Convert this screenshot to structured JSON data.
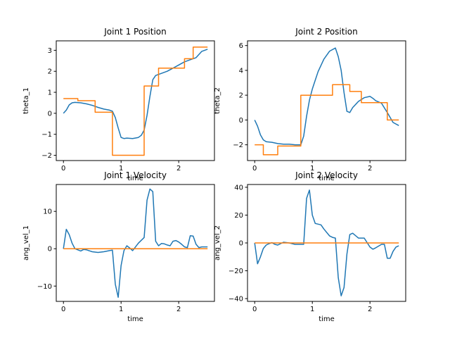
{
  "figure": {
    "background": "#ffffff"
  },
  "chart_data": [
    {
      "type": "line",
      "title": "Joint 1 Position",
      "xlabel": "time",
      "ylabel": "theta_1",
      "xlim": [
        -0.125,
        2.62
      ],
      "ylim": [
        -2.25,
        3.45
      ],
      "xticks": [
        0,
        1,
        2
      ],
      "xtick_labels": [
        "0",
        "1",
        "2"
      ],
      "yticks": [
        -2,
        -1,
        0,
        1,
        2,
        3
      ],
      "ytick_labels": [
        "−2",
        "−1",
        "0",
        "1",
        "2",
        "3"
      ],
      "series": [
        {
          "color": "#1f77b4",
          "x": [
            0,
            0.05,
            0.1,
            0.15,
            0.2,
            0.3,
            0.4,
            0.5,
            0.6,
            0.7,
            0.8,
            0.85,
            0.9,
            0.95,
            1.0,
            1.05,
            1.1,
            1.2,
            1.3,
            1.35,
            1.4,
            1.45,
            1.5,
            1.55,
            1.6,
            1.7,
            1.8,
            1.9,
            2.0,
            2.1,
            2.2,
            2.3,
            2.4,
            2.5
          ],
          "y": [
            0.0,
            0.15,
            0.4,
            0.5,
            0.52,
            0.5,
            0.45,
            0.38,
            0.28,
            0.2,
            0.15,
            0.1,
            -0.2,
            -0.7,
            -1.15,
            -1.2,
            -1.18,
            -1.2,
            -1.15,
            -1.05,
            -0.8,
            -0.1,
            0.8,
            1.6,
            1.8,
            1.9,
            2.0,
            2.15,
            2.3,
            2.45,
            2.55,
            2.65,
            2.95,
            3.05
          ]
        },
        {
          "color": "#ff7f0e",
          "x": [
            0,
            0.25,
            0.25,
            0.55,
            0.55,
            0.75,
            0.75,
            0.85,
            0.85,
            1.4,
            1.4,
            1.65,
            1.65,
            1.85,
            1.85,
            2.1,
            2.1,
            2.25,
            2.25,
            2.5
          ],
          "y": [
            0.7,
            0.7,
            0.6,
            0.6,
            0.05,
            0.05,
            0.05,
            0.05,
            -2.0,
            -2.0,
            1.3,
            1.3,
            2.15,
            2.15,
            2.15,
            2.15,
            2.6,
            2.6,
            3.15,
            3.15
          ]
        }
      ]
    },
    {
      "type": "line",
      "title": "Joint 2 Position",
      "xlabel": "time",
      "ylabel": "theta_2",
      "xlim": [
        -0.125,
        2.62
      ],
      "ylim": [
        -3.27,
        6.38
      ],
      "xticks": [
        0,
        1,
        2
      ],
      "xtick_labels": [
        "0",
        "1",
        "2"
      ],
      "yticks": [
        -2,
        0,
        2,
        4,
        6
      ],
      "ytick_labels": [
        "−2",
        "0",
        "2",
        "4",
        "6"
      ],
      "series": [
        {
          "color": "#1f77b4",
          "x": [
            0,
            0.05,
            0.1,
            0.15,
            0.2,
            0.3,
            0.4,
            0.5,
            0.6,
            0.7,
            0.8,
            0.85,
            0.9,
            0.95,
            1.0,
            1.05,
            1.1,
            1.2,
            1.3,
            1.4,
            1.45,
            1.5,
            1.55,
            1.6,
            1.65,
            1.7,
            1.8,
            1.9,
            2.0,
            2.05,
            2.1,
            2.2,
            2.3,
            2.4,
            2.5
          ],
          "y": [
            0.0,
            -0.5,
            -1.2,
            -1.6,
            -1.75,
            -1.8,
            -1.9,
            -1.95,
            -1.95,
            -2.0,
            -2.0,
            -1.3,
            0.3,
            1.6,
            2.5,
            3.2,
            3.9,
            4.9,
            5.55,
            5.8,
            5.1,
            4.0,
            2.2,
            0.7,
            0.6,
            1.0,
            1.5,
            1.8,
            1.9,
            1.75,
            1.55,
            1.35,
            0.6,
            -0.2,
            -0.45
          ]
        },
        {
          "color": "#ff7f0e",
          "x": [
            0,
            0.15,
            0.15,
            0.4,
            0.4,
            0.6,
            0.6,
            0.8,
            0.8,
            1.35,
            1.35,
            1.65,
            1.65,
            1.85,
            1.85,
            2.2,
            2.2,
            2.3,
            2.3,
            2.5
          ],
          "y": [
            -2.0,
            -2.0,
            -2.8,
            -2.8,
            -2.1,
            -2.1,
            -2.1,
            -2.1,
            2.0,
            2.0,
            2.85,
            2.85,
            2.3,
            2.3,
            1.4,
            1.4,
            1.4,
            1.4,
            0.0,
            0.0
          ]
        }
      ]
    },
    {
      "type": "line",
      "title": "Joint 1 Velocity",
      "xlabel": "time",
      "ylabel": "ang_vel_1",
      "xlim": [
        -0.125,
        2.62
      ],
      "ylim": [
        -14.1,
        17.2
      ],
      "xticks": [
        0,
        1,
        2
      ],
      "xtick_labels": [
        "0",
        "1",
        "2"
      ],
      "yticks": [
        -10,
        0,
        10
      ],
      "ytick_labels": [
        "−10",
        "0",
        "10"
      ],
      "series": [
        {
          "color": "#1f77b4",
          "x": [
            0,
            0.05,
            0.1,
            0.15,
            0.2,
            0.25,
            0.3,
            0.35,
            0.4,
            0.5,
            0.6,
            0.7,
            0.8,
            0.85,
            0.9,
            0.95,
            1.0,
            1.05,
            1.1,
            1.15,
            1.2,
            1.3,
            1.4,
            1.45,
            1.5,
            1.55,
            1.6,
            1.65,
            1.7,
            1.75,
            1.8,
            1.85,
            1.9,
            1.95,
            2.0,
            2.05,
            2.1,
            2.15,
            2.2,
            2.25,
            2.3,
            2.35,
            2.4,
            2.45,
            2.5
          ],
          "y": [
            0.0,
            5.2,
            3.8,
            1.5,
            0.0,
            -0.3,
            -0.6,
            -0.2,
            -0.3,
            -0.8,
            -1.0,
            -0.8,
            -0.5,
            -0.4,
            -9.5,
            -13.0,
            -4.5,
            -0.5,
            0.8,
            0.2,
            -0.5,
            1.5,
            3.0,
            13.0,
            16.0,
            15.3,
            2.0,
            0.8,
            1.4,
            1.3,
            1.0,
            0.8,
            2.0,
            2.2,
            1.8,
            1.2,
            0.5,
            0.3,
            3.5,
            3.4,
            1.2,
            0.3,
            0.5,
            0.5,
            0.5
          ]
        },
        {
          "color": "#ff7f0e",
          "x": [
            0,
            2.5
          ],
          "y": [
            0,
            0
          ]
        }
      ]
    },
    {
      "type": "line",
      "title": "Joint 2 Velocity",
      "xlabel": "time",
      "ylabel": "ang_vel_2",
      "xlim": [
        -0.125,
        2.62
      ],
      "ylim": [
        -42.0,
        42.0
      ],
      "xticks": [
        0,
        1,
        2
      ],
      "xtick_labels": [
        "0",
        "1",
        "2"
      ],
      "yticks": [
        -40,
        -20,
        0,
        20,
        40
      ],
      "ytick_labels": [
        "−40",
        "−20",
        "0",
        "20",
        "40"
      ],
      "series": [
        {
          "color": "#1f77b4",
          "x": [
            0,
            0.05,
            0.1,
            0.15,
            0.2,
            0.25,
            0.3,
            0.35,
            0.4,
            0.5,
            0.6,
            0.7,
            0.8,
            0.85,
            0.9,
            0.95,
            1.0,
            1.05,
            1.1,
            1.15,
            1.2,
            1.3,
            1.35,
            1.4,
            1.45,
            1.5,
            1.55,
            1.6,
            1.65,
            1.7,
            1.8,
            1.9,
            2.0,
            2.05,
            2.1,
            2.2,
            2.25,
            2.3,
            2.35,
            2.4,
            2.45,
            2.5
          ],
          "y": [
            0.0,
            -15.0,
            -10.0,
            -4.0,
            -1.5,
            -0.5,
            0.2,
            -1.0,
            -1.5,
            0.5,
            0.0,
            -1.0,
            -1.0,
            -1.0,
            32.0,
            38.0,
            20.0,
            14.0,
            13.5,
            13.0,
            10.0,
            5.0,
            4.0,
            3.5,
            -25.0,
            -38.0,
            -32.0,
            -8.0,
            6.0,
            7.0,
            3.5,
            3.5,
            -3.0,
            -4.5,
            -3.5,
            -1.0,
            -1.0,
            -11.0,
            -11.0,
            -6.0,
            -3.0,
            -2.0
          ]
        },
        {
          "color": "#ff7f0e",
          "x": [
            0,
            2.5
          ],
          "y": [
            0,
            0
          ]
        }
      ]
    }
  ]
}
